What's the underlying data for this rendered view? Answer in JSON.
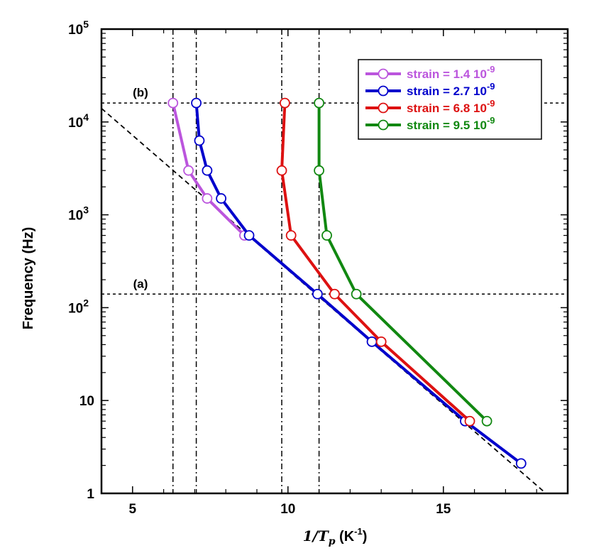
{
  "chart_data": {
    "type": "line",
    "xlabel": {
      "main": "1/T",
      "sub": "p",
      "unit": " (K",
      "exp": "-1",
      "close": ")"
    },
    "ylabel": "Frequency (Hz)",
    "xlim": [
      4,
      19
    ],
    "ylim": [
      1,
      100000
    ],
    "yscale": "log",
    "grid": false,
    "legend_position": "top-right",
    "x_ticks": [
      {
        "value": 5,
        "label": "5"
      },
      {
        "value": 10,
        "label": "10"
      },
      {
        "value": 15,
        "label": "15"
      }
    ],
    "y_ticks": [
      {
        "value": 1,
        "label": "1",
        "exp": ""
      },
      {
        "value": 10,
        "label": "10",
        "exp": ""
      },
      {
        "value": 100,
        "label": "10",
        "exp": "2"
      },
      {
        "value": 1000,
        "label": "10",
        "exp": "3"
      },
      {
        "value": 10000,
        "label": "10",
        "exp": "4"
      },
      {
        "value": 100000,
        "label": "10",
        "exp": "5"
      }
    ],
    "series": [
      {
        "name": "strain = 1.4 10",
        "exp": "-9",
        "color": "#bb55dd",
        "points": [
          [
            6.3,
            16000
          ],
          [
            6.8,
            3000
          ],
          [
            7.4,
            1500
          ],
          [
            8.6,
            600
          ]
        ]
      },
      {
        "name": "strain = 2.7 10",
        "exp": "-9",
        "color": "#0000cc",
        "points": [
          [
            7.05,
            16000
          ],
          [
            7.15,
            6300
          ],
          [
            7.4,
            3000
          ],
          [
            7.85,
            1500
          ],
          [
            8.75,
            600
          ],
          [
            10.95,
            140
          ],
          [
            12.7,
            43
          ],
          [
            15.7,
            6
          ],
          [
            17.5,
            2.1
          ]
        ]
      },
      {
        "name": "strain = 6.8 10",
        "exp": "-9",
        "color": "#dd1111",
        "points": [
          [
            9.9,
            16000
          ],
          [
            9.8,
            3000
          ],
          [
            10.1,
            600
          ],
          [
            11.5,
            140
          ],
          [
            13.0,
            43
          ],
          [
            15.85,
            6
          ]
        ]
      },
      {
        "name": "strain = 9.5 10",
        "exp": "-9",
        "color": "#118811",
        "points": [
          [
            11.0,
            16000
          ],
          [
            11.0,
            3000
          ],
          [
            11.25,
            600
          ],
          [
            12.2,
            140
          ],
          [
            16.4,
            6
          ]
        ]
      }
    ],
    "reference_lines": {
      "horizontal": [
        {
          "label": "(a)",
          "y": 140
        },
        {
          "label": "(b)",
          "y": 16000
        }
      ],
      "vertical": [
        6.3,
        7.05,
        9.8,
        11.0
      ],
      "diagonal": [
        [
          4,
          14000
        ],
        [
          18.3,
          1
        ]
      ]
    }
  }
}
